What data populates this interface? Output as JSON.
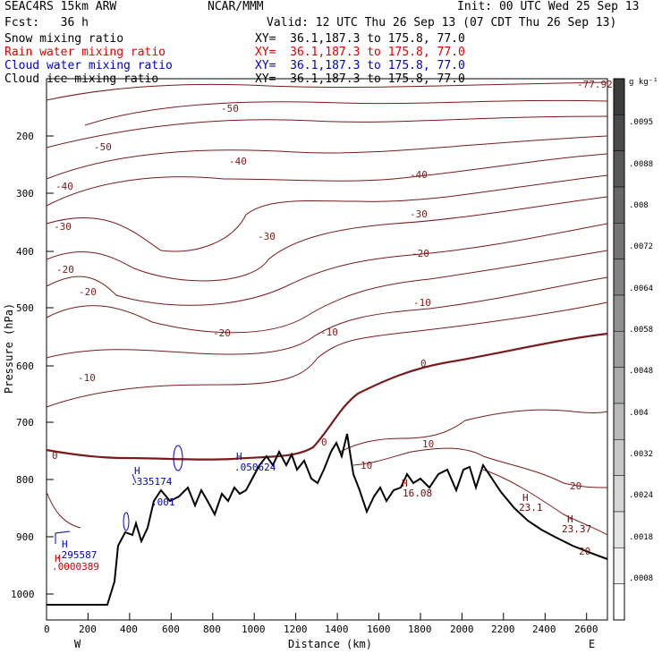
{
  "header": {
    "model": "SEAC4RS 15km ARW",
    "center": "NCAR/MMM",
    "init": "Init: 00 UTC Wed 25 Sep 13",
    "fcst": "Fcst:   36 h",
    "valid": "Valid: 12 UTC Thu 26 Sep 13 (07 CDT Thu 26 Sep 13)",
    "fields": [
      {
        "name": "Snow mixing ratio",
        "xy": "XY=  36.1,187.3 to 175.8, 77.0",
        "color": "#000000"
      },
      {
        "name": "Rain water mixing ratio",
        "xy": "XY=  36.1,187.3 to 175.8, 77.0",
        "color": "#e00000"
      },
      {
        "name": "Cloud water mixing ratio",
        "xy": "XY=  36.1,187.3 to 175.8, 77.0",
        "color": "#0000cc"
      },
      {
        "name": "Cloud ice mixing ratio",
        "xy": "XY=  36.1,187.3 to 175.8, 77.0",
        "color": "#000000"
      }
    ]
  },
  "chart_data": {
    "type": "contour-cross-section",
    "xlabel": "Distance (km)",
    "ylabel": "Pressure (hPa)",
    "xlim": [
      0,
      2700
    ],
    "ylim": [
      1050,
      100
    ],
    "x_ticks": [
      "0",
      "200",
      "400",
      "600",
      "800",
      "1000",
      "1200",
      "1400",
      "1600",
      "1800",
      "2000",
      "2200",
      "2400",
      "2600"
    ],
    "y_ticks": [
      "200",
      "300",
      "400",
      "500",
      "600",
      "700",
      "800",
      "900",
      "1000"
    ],
    "endpoints": {
      "left": "W",
      "right": "E"
    },
    "temperature_contour_labels": [
      "-50",
      "-50",
      "-40",
      "-40",
      "-40",
      "-30",
      "-30",
      "-30",
      "-20",
      "-20",
      "-20",
      "-20",
      "-10",
      "-10",
      "-10",
      "0",
      "0",
      "0",
      "10",
      "10",
      "20",
      "20",
      "-77.92"
    ],
    "maxima_labels": [
      {
        "text": "H",
        "value": ".335174",
        "color": "#0000cc"
      },
      {
        "text": "H",
        "value": ".050624",
        "color": "#0000cc"
      },
      {
        "text": "H",
        "value": ".295587",
        "color": "#0000cc"
      },
      {
        "text": "H",
        "value": ".0000389",
        "color": "#cc0000"
      },
      {
        "text": "H",
        "value": "16.08",
        "color": "#800000"
      },
      {
        "text": "H",
        "value": "23.1",
        "color": "#800000"
      },
      {
        "text": "H",
        "value": "23.37",
        "color": "#800000"
      },
      {
        "text": "",
        "value": ".001",
        "color": "#0000cc"
      }
    ],
    "colorbar": {
      "units": "g kg⁻¹",
      "labels": [
        ".0095",
        ".0088",
        ".008",
        ".0072",
        ".0064",
        ".0058",
        ".0048",
        ".004",
        ".0032",
        ".0024",
        ".0018",
        ".0008"
      ],
      "levels": 15
    },
    "colors": {
      "isotherm": "#7a1a1a",
      "freezing": "#7a1a1a",
      "terrain": "#000000",
      "cloud": "#0000cc"
    }
  }
}
